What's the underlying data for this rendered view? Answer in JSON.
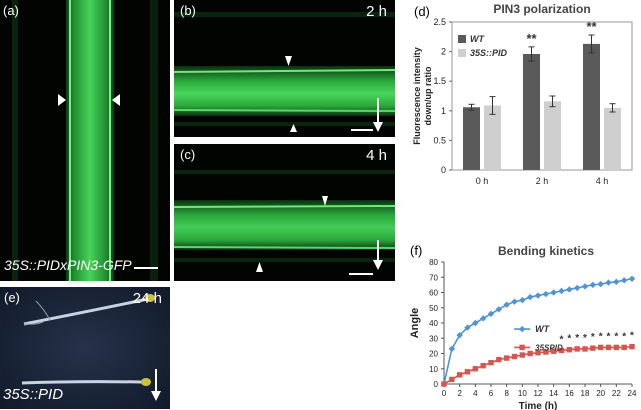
{
  "panels": {
    "a": {
      "label": "(a)",
      "caption": "35S::PIDxPIN3-GFP"
    },
    "b": {
      "label": "(b)",
      "time": "2 h"
    },
    "c": {
      "label": "(c)",
      "time": "4 h"
    },
    "d": {
      "label": "(d)"
    },
    "e": {
      "label": "(e)",
      "time": "24 h",
      "caption": "35S::PID"
    },
    "f": {
      "label": "(f)"
    }
  },
  "chart_data": [
    {
      "type": "bar",
      "title": "PIN3 polarization",
      "ylabel": "Fluorescence intensity down/up ratio",
      "categories": [
        "0 h",
        "2 h",
        "4 h"
      ],
      "series": [
        {
          "name": "WT",
          "values": [
            1.06,
            1.96,
            2.13
          ],
          "errors": [
            0.05,
            0.12,
            0.15
          ],
          "color": "#5a5a5a"
        },
        {
          "name": "35S::PID",
          "values": [
            1.09,
            1.16,
            1.05
          ],
          "errors": [
            0.15,
            0.09,
            0.07
          ],
          "color": "#cfcfcf"
        }
      ],
      "ylim": [
        0,
        2.5
      ],
      "yticks": [
        "0",
        "0.5",
        "1",
        "1.5",
        "2",
        "2.5"
      ],
      "annotations": [
        "**",
        "**"
      ],
      "legend": "top-left"
    },
    {
      "type": "line",
      "title": "Bending kinetics",
      "xlabel": "Time (h)",
      "ylabel": "Angle",
      "xlim": [
        0,
        24
      ],
      "ylim": [
        0,
        80
      ],
      "xticks": [
        "0",
        "2",
        "4",
        "6",
        "8",
        "10",
        "12",
        "14",
        "16",
        "18",
        "20",
        "22",
        "24"
      ],
      "yticks": [
        "0",
        "10",
        "20",
        "30",
        "40",
        "50",
        "60",
        "70",
        "80"
      ],
      "x": [
        0,
        1,
        2,
        3,
        4,
        5,
        6,
        7,
        8,
        9,
        10,
        11,
        12,
        13,
        14,
        15,
        16,
        17,
        18,
        19,
        20,
        21,
        22,
        23,
        24
      ],
      "series": [
        {
          "name": "WT",
          "color": "#4f95d6",
          "marker": "diamond",
          "values": [
            0,
            23,
            32,
            37,
            40,
            43,
            46,
            49,
            52,
            54,
            55,
            57,
            58,
            59,
            60,
            61,
            62,
            63,
            64,
            65,
            65.5,
            66.5,
            67,
            68,
            69
          ]
        },
        {
          "name": "35SPID",
          "color": "#d9534f",
          "marker": "square",
          "values": [
            0,
            3,
            6,
            8,
            10,
            12,
            14,
            16,
            17,
            18,
            19,
            20,
            20.5,
            21,
            21.5,
            22,
            22.5,
            23,
            23,
            23.5,
            24,
            24,
            24,
            24,
            24.5
          ]
        }
      ],
      "asterisks": "**********",
      "legend": "right"
    }
  ]
}
